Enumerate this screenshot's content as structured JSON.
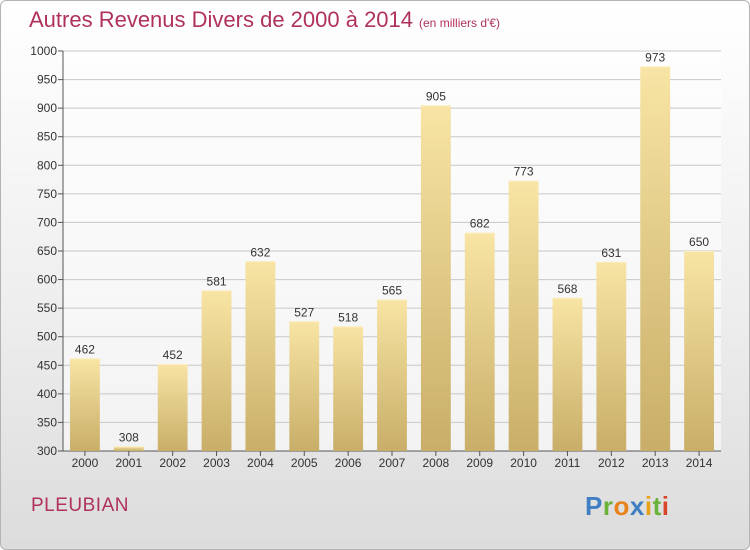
{
  "header": {
    "title": "Autres Revenus Divers de 2000 à 2014",
    "unit": "(en milliers d'€)"
  },
  "footer": {
    "town": "PLEUBIAN",
    "brand": "Proxiti"
  },
  "colors": {
    "title": "#b0325a",
    "bar_light": "#f8e4a4",
    "bar_dark": "#c8ae68",
    "grid": "#c8c8c8"
  },
  "chart_data": {
    "type": "bar",
    "title": "Autres Revenus Divers de 2000 à 2014",
    "subtitle": "(en milliers d'€)",
    "categories": [
      "2000",
      "2001",
      "2002",
      "2003",
      "2004",
      "2005",
      "2006",
      "2007",
      "2008",
      "2009",
      "2010",
      "2011",
      "2012",
      "2013",
      "2014"
    ],
    "values": [
      462,
      308,
      452,
      581,
      632,
      527,
      518,
      565,
      905,
      682,
      773,
      568,
      631,
      973,
      650
    ],
    "ylim": [
      300,
      1000
    ],
    "yticks": [
      300,
      350,
      400,
      450,
      500,
      550,
      600,
      650,
      700,
      750,
      800,
      850,
      900,
      950,
      1000
    ],
    "grid": true,
    "data_labels": true
  }
}
